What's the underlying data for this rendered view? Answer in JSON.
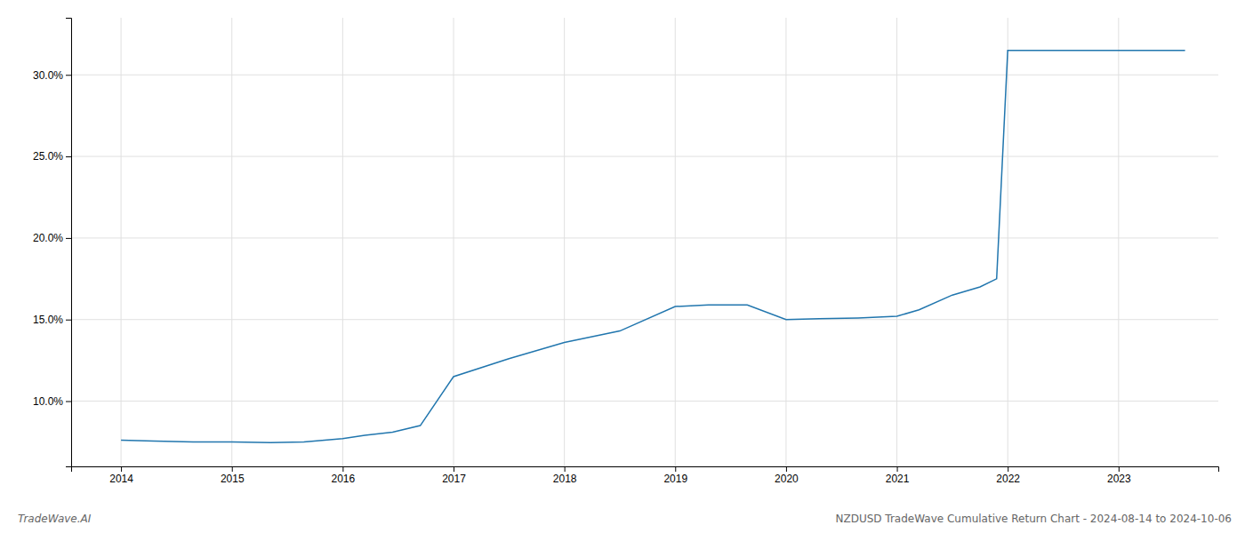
{
  "chart_data": {
    "type": "line",
    "x": [
      2014,
      2014.3,
      2014.65,
      2015,
      2015.35,
      2015.65,
      2016,
      2016.2,
      2016.45,
      2016.7,
      2017,
      2017.5,
      2018,
      2018.5,
      2019,
      2019.3,
      2019.65,
      2020,
      2020.3,
      2020.65,
      2021,
      2021.2,
      2021.5,
      2021.75,
      2021.9,
      2022.0,
      2022.4,
      2023.0,
      2023.6
    ],
    "values": [
      7.6,
      7.55,
      7.5,
      7.5,
      7.45,
      7.5,
      7.7,
      7.9,
      8.1,
      8.5,
      11.5,
      12.6,
      13.6,
      14.3,
      15.8,
      15.9,
      15.9,
      15.0,
      15.05,
      15.1,
      15.2,
      15.6,
      16.5,
      17.0,
      17.5,
      31.5,
      31.5,
      31.5,
      31.5
    ],
    "color": "#2176ae",
    "xlim": [
      2013.55,
      2023.9
    ],
    "ylim": [
      6.0,
      33.5
    ],
    "xticks": [
      2014,
      2015,
      2016,
      2017,
      2018,
      2019,
      2020,
      2021,
      2022,
      2023
    ],
    "yticks": [
      {
        "value": 10.0,
        "label": "10.0%"
      },
      {
        "value": 15.0,
        "label": "15.0%"
      },
      {
        "value": 20.0,
        "label": "20.0%"
      },
      {
        "value": 25.0,
        "label": "25.0%"
      },
      {
        "value": 30.0,
        "label": "30.0%"
      }
    ],
    "grid": true,
    "annotations": [
      "TradeWave.AI",
      "NZDUSD TradeWave Cumulative Return Chart - 2024-08-14 to 2024-10-06"
    ]
  }
}
